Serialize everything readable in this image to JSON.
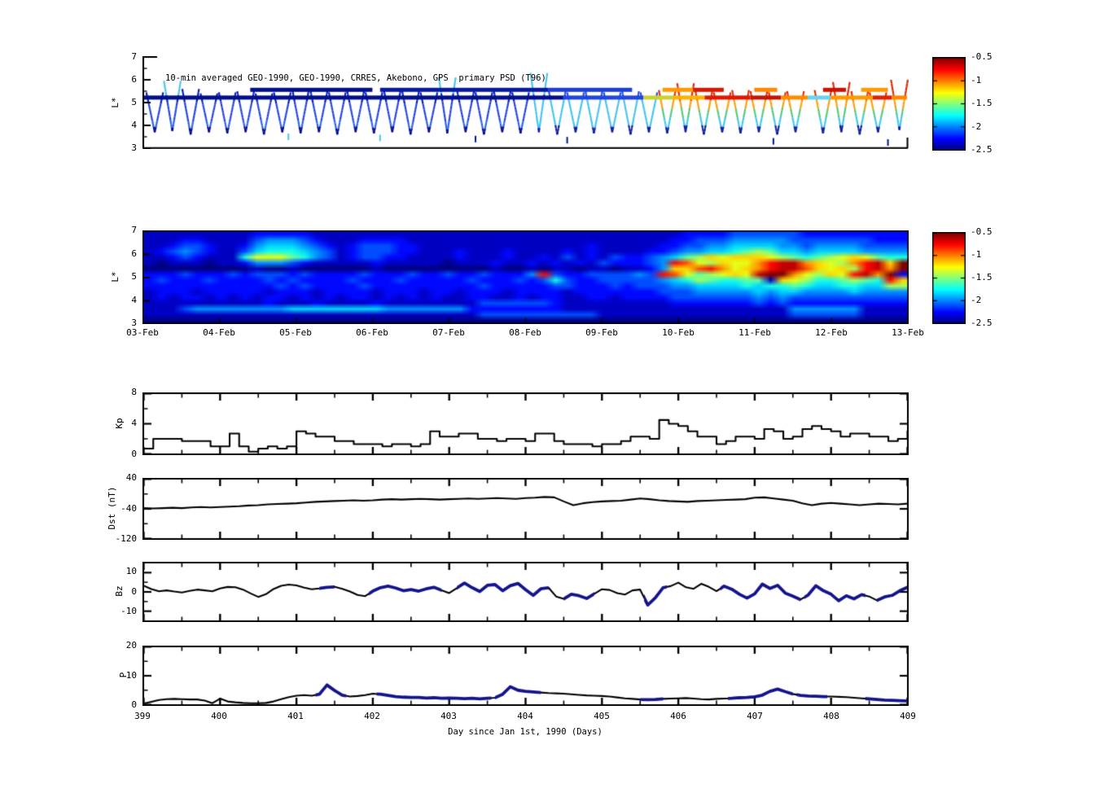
{
  "figure": {
    "title": "10-min averaged GEO-1990, GEO-1990, CRRES, Akebono, GPS  primary PSD (T96)",
    "xlabel": "Day since Jan 1st, 1990 (Days)"
  },
  "labels": {
    "scatter_ylabel": "L*",
    "map_ylabel": "L*",
    "kp": "Kp",
    "dst": "Dst (nT)",
    "bz": "Bz",
    "p": "P"
  },
  "axes": {
    "xticks": [
      "399",
      "400",
      "401",
      "402",
      "403",
      "404",
      "405",
      "406",
      "407",
      "408",
      "409"
    ],
    "date_ticks": [
      "03-Feb",
      "04-Feb",
      "05-Feb",
      "06-Feb",
      "07-Feb",
      "08-Feb",
      "09-Feb",
      "10-Feb",
      "11-Feb",
      "12-Feb",
      "13-Feb"
    ],
    "scatter_yticks": [
      7,
      6,
      5,
      4,
      3
    ],
    "map_yticks": [
      7,
      6,
      5,
      4,
      3
    ],
    "kp_yticks": [
      8,
      4,
      0
    ],
    "dst_yticks": [
      40,
      -40,
      -120
    ],
    "bz_yticks": [
      10,
      0,
      -10
    ],
    "p_yticks": [
      20,
      10,
      0
    ],
    "colorbar_ticks": [
      "-0.5",
      "-1",
      "-1.5",
      "-2",
      "-2.5"
    ]
  },
  "chart_data": [
    {
      "type": "scatter",
      "title": "10-min averaged GEO-1990, GEO-1990, CRRES, Akebono, GPS  primary PSD (T96)",
      "ylabel": "L*",
      "ylim": [
        3,
        7
      ],
      "xlim": [
        399,
        409
      ],
      "colormap": "jet",
      "clim": [
        -2.5,
        -0.5
      ],
      "palette": {
        "cold": {
          "top": "#0a1cb4",
          "mid": "#2244e0",
          "low": "#2b62f0",
          "tip": "#000d86",
          "arc": "#49c3f2"
        },
        "mid": {
          "top": "#2547e2",
          "mid": "#45c2ee",
          "low": "#45c2ee",
          "tip": "#0a1e9c",
          "arc": "#49c3f2"
        },
        "warm": {
          "top": "#dd2800",
          "upper": "#ff9d00",
          "mid": "#52c97e",
          "low": "#3fc6ee",
          "tip": "#0a1e9c",
          "arc": "#dd2800"
        }
      },
      "satellite_passes": [
        [
          399.15,
          5.45,
          3.7,
          "c"
        ],
        [
          399.38,
          5.95,
          3.75,
          "c"
        ],
        [
          399.62,
          5.6,
          3.6,
          "c"
        ],
        [
          399.86,
          5.4,
          3.7,
          "c"
        ],
        [
          400.1,
          5.45,
          3.65,
          "c"
        ],
        [
          400.34,
          5.5,
          3.7,
          "c"
        ],
        [
          400.58,
          5.4,
          3.6,
          "c"
        ],
        [
          400.82,
          5.45,
          3.7,
          "c"
        ],
        [
          401.06,
          5.6,
          3.65,
          "c"
        ],
        [
          401.3,
          5.5,
          3.7,
          "c"
        ],
        [
          401.54,
          5.45,
          3.6,
          "c"
        ],
        [
          401.78,
          5.5,
          3.7,
          "c"
        ],
        [
          402.02,
          5.45,
          3.65,
          "c"
        ],
        [
          402.26,
          5.55,
          3.7,
          "c"
        ],
        [
          402.5,
          5.5,
          3.6,
          "c"
        ],
        [
          402.74,
          5.45,
          3.7,
          "c"
        ],
        [
          402.98,
          6.1,
          3.65,
          "c"
        ],
        [
          403.22,
          5.5,
          3.7,
          "c"
        ],
        [
          403.46,
          5.45,
          3.6,
          "c"
        ],
        [
          403.7,
          5.5,
          3.7,
          "c"
        ],
        [
          403.94,
          5.45,
          3.65,
          "c"
        ],
        [
          404.18,
          6.3,
          3.7,
          "m"
        ],
        [
          404.42,
          5.5,
          3.6,
          "m"
        ],
        [
          404.66,
          5.45,
          3.7,
          "m"
        ],
        [
          404.9,
          5.5,
          3.65,
          "m"
        ],
        [
          405.14,
          5.45,
          3.7,
          "m"
        ],
        [
          405.38,
          5.5,
          3.6,
          "m"
        ],
        [
          405.62,
          5.45,
          3.7,
          "m"
        ],
        [
          405.86,
          5.55,
          3.65,
          "w"
        ],
        [
          406.1,
          5.85,
          3.7,
          "w"
        ],
        [
          406.34,
          5.5,
          3.6,
          "w"
        ],
        [
          406.58,
          5.45,
          3.7,
          "w"
        ],
        [
          406.82,
          5.55,
          3.65,
          "w"
        ],
        [
          407.06,
          5.5,
          3.7,
          "w"
        ],
        [
          407.3,
          5.45,
          3.6,
          "w"
        ],
        [
          407.54,
          5.5,
          3.7,
          "w"
        ],
        [
          407.9,
          5.55,
          3.65,
          "w"
        ],
        [
          408.14,
          5.9,
          3.7,
          "w"
        ],
        [
          408.38,
          5.5,
          3.6,
          "w"
        ],
        [
          408.62,
          5.45,
          3.7,
          "w"
        ],
        [
          408.9,
          6.0,
          3.8,
          "w"
        ]
      ],
      "geo_bands": [
        {
          "L": 5.22,
          "segments": [
            [
              399.0,
              404.5,
              "#000f8a"
            ],
            [
              404.5,
              405.55,
              "#2246dd"
            ],
            [
              405.55,
              405.95,
              "#c8d42c"
            ],
            [
              405.95,
              406.35,
              "#ffb300"
            ],
            [
              406.35,
              406.95,
              "#e01800"
            ],
            [
              406.95,
              407.35,
              "#c21600"
            ],
            [
              407.35,
              407.7,
              "#ff8c00"
            ],
            [
              407.7,
              408.0,
              "#6ad2f0"
            ],
            [
              408.0,
              408.55,
              "#ff9900"
            ],
            [
              408.55,
              408.8,
              "#e02000"
            ],
            [
              408.8,
              409.0,
              "#ff8800"
            ]
          ]
        },
        {
          "L": 5.56,
          "segments": [
            [
              400.4,
              402.0,
              "#000f8a"
            ],
            [
              402.1,
              404.3,
              "#071a9e"
            ],
            [
              404.3,
              405.4,
              "#1c3fd0"
            ],
            [
              405.8,
              406.2,
              "#ff9900"
            ],
            [
              406.2,
              406.6,
              "#d61800"
            ],
            [
              407.0,
              407.3,
              "#ff8800"
            ],
            [
              407.9,
              408.2,
              "#cc1100"
            ],
            [
              408.4,
              408.75,
              "#ff9900"
            ]
          ]
        }
      ],
      "stray_marks": [
        [
          403.35,
          3.4,
          "#001489"
        ],
        [
          404.55,
          3.35,
          "#001489"
        ],
        [
          407.25,
          3.3,
          "#001489"
        ],
        [
          408.75,
          3.25,
          "#001489"
        ],
        [
          400.9,
          3.5,
          "#49c3f2"
        ],
        [
          402.1,
          3.45,
          "#49c3f2"
        ]
      ]
    },
    {
      "type": "heatmap",
      "ylabel": "L*",
      "ylim": [
        3,
        7
      ],
      "xlim": [
        399,
        409
      ],
      "x_dates": [
        "03-Feb",
        "04-Feb",
        "05-Feb",
        "06-Feb",
        "07-Feb",
        "08-Feb",
        "09-Feb",
        "10-Feb",
        "11-Feb",
        "12-Feb",
        "13-Feb"
      ],
      "colormap": "jet",
      "clim": [
        -2.5,
        -0.5
      ],
      "grid_encoding": {
        "chars": "0123456789abcdef",
        "value_min": -2.5,
        "value_max": -0.5
      },
      "rows_top_to_bottom": [
        "1111111112222211111111111111111111111111111112222333333222222222",
        "1112211113444321112222111111111111111111111122333444443333333222",
        "1123321124555432123332211111111111111211111223344555544344443333",
        "1234321135666543123332211121112111121211112234455678755455554444",
        "11232111699976431233221111211121121312132234578a9aaa9876789a9766",
        "10111011244432111112111110111211212121322234dc98a99bdeeba98bdeaf",
        "00000000010010000001000000000100101101101124aacdb9abdeeca9a8debf",
        "222322232333232222322232232232224d322333343dc9789a9effb98a9debf2",
        "2322232222323222232223222223222323632233333456876677 a98667876da",
        "2222222222232322223222222222322222332223233344555565667655665588",
        "1222122222122212222122212212221222212222222333444445455444454444",
        "1212212121221212122121212112211212211221222233333334343333333333",
        "1111111111211121111211111111333333211111111122222223232222222222",
        "1113444444445555555544444442222222211111111111111111114444441111",
        "1111111111111111111111111111333333333311111111111111113333331111",
        "0000000000000000000000000000000000000000000000000000000000000000"
      ]
    },
    {
      "type": "line",
      "name": "Kp",
      "ylabel": "Kp",
      "ylim": [
        0,
        8
      ],
      "xlim": [
        399,
        409
      ],
      "step": true,
      "t0": 399,
      "dt": 0.125,
      "values": [
        0.7,
        2.0,
        2.0,
        2.0,
        1.7,
        1.7,
        1.7,
        1.0,
        1.0,
        2.7,
        1.0,
        0.3,
        0.7,
        1.0,
        0.7,
        1.0,
        3.0,
        2.7,
        2.3,
        2.3,
        1.7,
        1.7,
        1.3,
        1.3,
        1.3,
        1.0,
        1.3,
        1.3,
        1.0,
        1.3,
        3.0,
        2.3,
        2.3,
        2.7,
        2.7,
        2.0,
        2.0,
        1.7,
        2.0,
        2.0,
        1.7,
        2.7,
        2.7,
        1.7,
        1.3,
        1.3,
        1.3,
        1.0,
        1.3,
        1.3,
        1.7,
        2.3,
        2.3,
        2.0,
        4.5,
        4.0,
        3.7,
        3.0,
        2.3,
        2.3,
        1.3,
        1.7,
        2.3,
        2.3,
        2.0,
        3.3,
        3.0,
        2.0,
        2.3,
        3.3,
        3.7,
        3.3,
        3.0,
        2.3,
        2.7,
        2.7,
        2.3,
        2.3,
        1.7,
        2.0,
        3.0
      ]
    },
    {
      "type": "line",
      "name": "Dst",
      "ylabel": "Dst (nT)",
      "units": "nT",
      "ylim": [
        -120,
        40
      ],
      "xlim": [
        399,
        409
      ],
      "step": false,
      "t0": 399,
      "dt": 0.125,
      "values": [
        -38,
        -39,
        -38,
        -37,
        -38,
        -36,
        -35,
        -36,
        -35,
        -34,
        -33,
        -31,
        -30,
        -28,
        -27,
        -26,
        -25,
        -23,
        -21,
        -20,
        -19,
        -18,
        -17,
        -18,
        -17,
        -15,
        -14,
        -15,
        -14,
        -13,
        -14,
        -15,
        -14,
        -13,
        -12,
        -13,
        -12,
        -11,
        -12,
        -13,
        -11,
        -10,
        -8,
        -9,
        -20,
        -30,
        -25,
        -22,
        -20,
        -19,
        -18,
        -15,
        -12,
        -14,
        -17,
        -19,
        -20,
        -21,
        -19,
        -18,
        -17,
        -16,
        -15,
        -14,
        -10,
        -9,
        -12,
        -15,
        -18,
        -25,
        -30,
        -26,
        -24,
        -26,
        -28,
        -30,
        -28,
        -26,
        -27,
        -28,
        -26
      ]
    },
    {
      "type": "line",
      "name": "Bz",
      "ylabel": "Bz",
      "ylim": [
        -15,
        15
      ],
      "xlim": [
        399,
        409
      ],
      "step": false,
      "t0": 399,
      "dt": 0.1,
      "overlay_color": "#14148c",
      "overlay_ranges": [
        [
          401.3,
          401.5
        ],
        [
          401.95,
          402.9
        ],
        [
          403.1,
          404.3
        ],
        [
          404.5,
          404.9
        ],
        [
          405.55,
          405.85
        ],
        [
          406.55,
          407.6
        ],
        [
          407.65,
          408.45
        ],
        [
          408.6,
          409.0
        ]
      ],
      "values": [
        3.2,
        1.5,
        0.3,
        0.8,
        0.2,
        -0.3,
        0.5,
        1.2,
        0.8,
        0.3,
        1.8,
        2.6,
        2.4,
        1.2,
        -0.8,
        -2.6,
        -1.2,
        1.5,
        3.2,
        3.8,
        3.4,
        2.2,
        1.4,
        1.8,
        2.4,
        2.6,
        1.6,
        0.2,
        -1.6,
        -2.2,
        0.4,
        2.2,
        3.0,
        2.0,
        0.6,
        1.2,
        0.4,
        1.6,
        2.4,
        0.8,
        -0.6,
        2.0,
        4.6,
        2.2,
        0.2,
        3.4,
        3.8,
        0.6,
        3.2,
        4.4,
        1.2,
        -1.8,
        1.6,
        2.2,
        -2.4,
        -3.6,
        -1.2,
        -2.0,
        -3.4,
        -1.0,
        1.4,
        1.0,
        -0.6,
        -1.4,
        0.8,
        1.2,
        -6.8,
        -3.0,
        2.2,
        3.0,
        4.8,
        2.4,
        1.6,
        4.2,
        2.6,
        0.4,
        3.0,
        1.4,
        -1.2,
        -3.2,
        -1.0,
        4.0,
        1.8,
        3.4,
        -0.6,
        -2.2,
        -4.0,
        -1.6,
        3.2,
        0.6,
        -1.2,
        -4.6,
        -2.0,
        -3.6,
        -1.4,
        -2.4,
        -4.4,
        -2.6,
        -1.8,
        0.6,
        2.4
      ]
    },
    {
      "type": "line",
      "name": "P",
      "ylabel": "P",
      "ylim": [
        0,
        20
      ],
      "xlim": [
        399,
        409
      ],
      "step": false,
      "t0": 399,
      "dt": 0.1,
      "overlay_color": "#14148c",
      "overlay_ranges": [
        [
          401.25,
          401.65
        ],
        [
          402.05,
          403.55
        ],
        [
          403.6,
          404.2
        ],
        [
          405.5,
          405.8
        ],
        [
          406.65,
          407.5
        ],
        [
          407.55,
          407.95
        ],
        [
          408.45,
          409.0
        ]
      ],
      "values": [
        0.4,
        1.0,
        1.6,
        1.9,
        2.0,
        1.9,
        1.8,
        1.8,
        1.4,
        0.5,
        2.1,
        1.1,
        0.8,
        0.6,
        0.5,
        0.5,
        0.6,
        1.1,
        1.9,
        2.6,
        3.1,
        3.3,
        3.1,
        3.6,
        6.8,
        4.9,
        3.3,
        2.8,
        3.0,
        3.3,
        3.8,
        3.6,
        3.2,
        2.8,
        2.6,
        2.5,
        2.5,
        2.3,
        2.4,
        2.2,
        2.3,
        2.2,
        2.1,
        2.2,
        2.0,
        2.2,
        2.4,
        3.6,
        6.2,
        5.0,
        4.6,
        4.4,
        4.2,
        4.0,
        3.9,
        3.8,
        3.6,
        3.4,
        3.2,
        3.1,
        3.0,
        2.8,
        2.5,
        2.2,
        2.0,
        1.8,
        1.7,
        1.8,
        2.0,
        2.1,
        2.2,
        2.3,
        2.1,
        1.9,
        1.8,
        2.0,
        2.1,
        2.2,
        2.4,
        2.5,
        2.7,
        3.3,
        4.6,
        5.4,
        4.5,
        3.7,
        3.2,
        3.0,
        2.9,
        2.8,
        2.8,
        2.7,
        2.6,
        2.4,
        2.2,
        2.0,
        1.8,
        1.6,
        1.5,
        1.4,
        1.3
      ]
    }
  ]
}
